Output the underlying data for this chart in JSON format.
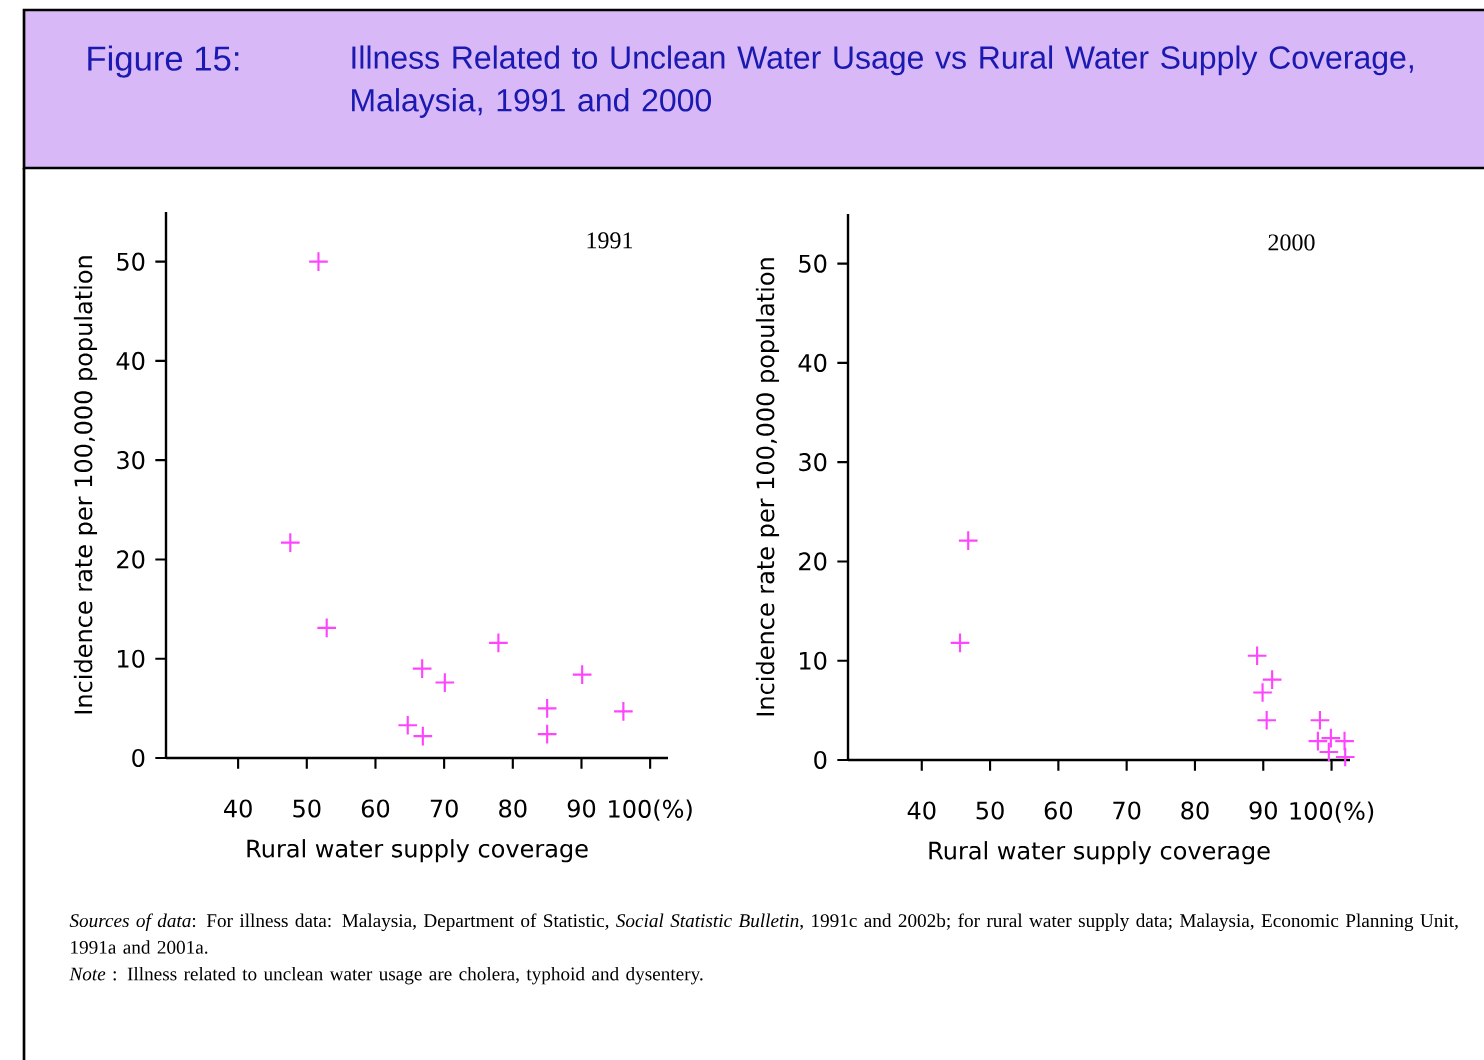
{
  "chart_data": [
    {
      "type": "scatter",
      "title": "Illness Related to Unclean Water Usage vs Rural Water Supply Coverage, Malaysia, 1991 and 2000",
      "subtitle": "1991",
      "annotations": [
        "Figure 15:"
      ],
      "xlabel": "Rural water supply coverage",
      "ylabel": "Incidence rate per 100,000 population",
      "marker": "cross",
      "grid": false,
      "xlim": [
        29.5,
        102.6
      ],
      "ylim": [
        0,
        55
      ],
      "xticks": [
        40,
        50,
        60,
        70,
        80,
        90,
        {
          "value": 100,
          "label": "100(%)"
        }
      ],
      "yticks": [
        0,
        10,
        20,
        30,
        40,
        50
      ],
      "series": [
        {
          "color": "#ff44ff",
          "x": [
            51.7,
            47.6,
            52.9,
            66.8,
            70.1,
            64.7,
            66.9,
            77.9,
            85.0,
            85.0,
            90.1,
            96.1
          ],
          "values": [
            50,
            21.7,
            13.1,
            9.0,
            7.6,
            3.3,
            2.2,
            11.6,
            5.0,
            2.4,
            8.4,
            4.7
          ]
        }
      ]
    },
    {
      "type": "scatter",
      "subtitle": "2000",
      "annotations": [
        "*Sources of data*: For illness data: Malaysia, Department of Statistic, *Social Statistic Bulletin*, 1991c and 2002b; for rural water supply data; Malaysia, Economic Planning Unit, 1991a and 2001a.",
        "*Note* : Illness related to unclean water usage are cholera, typhoid and dysentery."
      ],
      "xlabel": "Rural water supply coverage",
      "ylabel": "Incidence rate per 100,000 population",
      "marker": "cross",
      "grid": false,
      "xlim": [
        29.2,
        102.7
      ],
      "ylim": [
        0,
        55
      ],
      "xticks": [
        40,
        50,
        60,
        70,
        80,
        90,
        {
          "value": 100,
          "label": "100(%)"
        }
      ],
      "yticks": [
        0,
        10,
        20,
        30,
        40,
        50
      ],
      "series": [
        {
          "color": "#ff44ff",
          "x": [
            46.8,
            45.6,
            89.1,
            91.3,
            89.9,
            90.5,
            98.3,
            98.0,
            99.9,
            101.9,
            99.6,
            102.0
          ],
          "values": [
            22.1,
            11.8,
            10.5,
            8.1,
            6.8,
            4.0,
            4.0,
            1.9,
            2.2,
            1.9,
            0.8,
            0.3
          ]
        }
      ]
    }
  ]
}
